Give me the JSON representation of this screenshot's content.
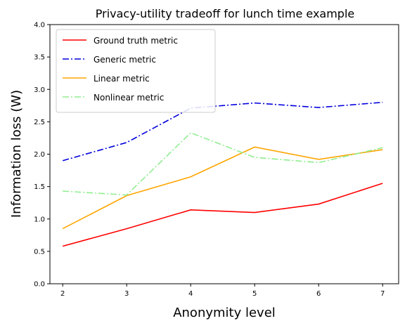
{
  "chart_data": {
    "type": "line",
    "title": "Privacy-utility tradeoff for lunch time example",
    "xlabel": "Anonymity level",
    "ylabel": "Information loss (W)",
    "x": [
      2,
      3,
      4,
      5,
      6,
      7
    ],
    "xlim": [
      1.8,
      7.25
    ],
    "ylim": [
      0,
      4
    ],
    "xticks": [
      "2",
      "3",
      "4",
      "5",
      "6",
      "7"
    ],
    "yticks": [
      "0.0",
      "0.5",
      "1.0",
      "1.5",
      "2.0",
      "2.5",
      "3.0",
      "3.5",
      "4.0"
    ],
    "grid": false,
    "legend_position": "upper-left",
    "series": [
      {
        "name": "Ground truth metric",
        "color": "#ff0000",
        "dash": "solid",
        "values": [
          0.58,
          0.85,
          1.14,
          1.1,
          1.23,
          1.55
        ]
      },
      {
        "name": "Generic metric",
        "color": "#0000dd",
        "dash": "dashdot",
        "values": [
          1.9,
          2.18,
          2.71,
          2.79,
          2.72,
          2.8
        ]
      },
      {
        "name": "Linear metric",
        "color": "#ffa500",
        "dash": "solid",
        "values": [
          0.85,
          1.36,
          1.65,
          2.11,
          1.92,
          2.07
        ]
      },
      {
        "name": "Nonlinear metric",
        "color": "#90ee90",
        "dash": "dashdot",
        "values": [
          1.43,
          1.37,
          2.33,
          1.95,
          1.87,
          2.1
        ]
      }
    ]
  }
}
